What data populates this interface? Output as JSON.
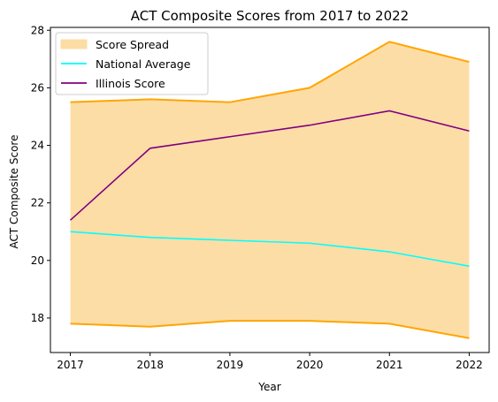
{
  "chart_data": {
    "type": "line",
    "title": "ACT Composite Scores from 2017 to 2022",
    "xlabel": "Year",
    "ylabel": "ACT Composite Score",
    "x": [
      2017,
      2018,
      2019,
      2020,
      2021,
      2022
    ],
    "x_tick_labels": [
      "2017",
      "2018",
      "2019",
      "2020",
      "2021",
      "2022"
    ],
    "y_ticks": [
      18,
      20,
      22,
      24,
      26,
      28
    ],
    "y_tick_labels": [
      "18",
      "20",
      "22",
      "24",
      "26",
      "28"
    ],
    "ylim": [
      16.8,
      28.1
    ],
    "grid": false,
    "legend_position": "upper-left",
    "spread": {
      "name": "Score Spread",
      "lower": [
        17.8,
        17.7,
        17.9,
        17.9,
        17.8,
        17.3
      ],
      "upper": [
        25.5,
        25.6,
        25.5,
        26.0,
        27.6,
        26.9
      ],
      "fill_color": "#fddda6",
      "edge_color": "#ffa500"
    },
    "series": [
      {
        "name": "National Average",
        "values": [
          21.0,
          20.8,
          20.7,
          20.6,
          20.3,
          19.8
        ],
        "color": "#00ffff"
      },
      {
        "name": "Illinois Score",
        "values": [
          21.4,
          23.9,
          24.3,
          24.7,
          25.2,
          24.5
        ],
        "color": "#800080"
      }
    ]
  }
}
